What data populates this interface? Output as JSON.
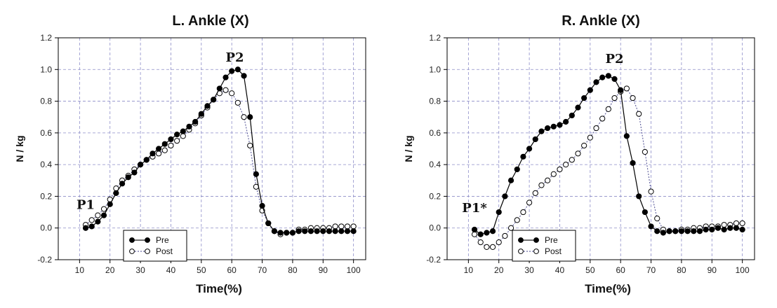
{
  "chart_data": [
    {
      "type": "line",
      "title": "L. Ankle (X)",
      "xlabel": "Time(%)",
      "ylabel": "N / kg",
      "xlim": [
        3,
        104
      ],
      "ylim": [
        -0.2,
        1.2
      ],
      "xticks": [
        10,
        20,
        30,
        40,
        50,
        60,
        70,
        80,
        90,
        100
      ],
      "yticks": [
        "-0.2",
        "0.0",
        "0.2",
        "0.4",
        "0.6",
        "0.8",
        "1.0",
        "1.2"
      ],
      "grid": true,
      "legend_position": "bottom-left",
      "annotations": [
        {
          "text": "P1",
          "x": 12,
          "y": 0.12
        },
        {
          "text": "P2",
          "x": 61,
          "y": 1.05
        }
      ],
      "series": [
        {
          "name": "Pre",
          "marker": "filled-circle",
          "line": "solid",
          "x": [
            12,
            14,
            16,
            18,
            20,
            22,
            24,
            26,
            28,
            30,
            32,
            34,
            36,
            38,
            40,
            42,
            44,
            46,
            48,
            50,
            52,
            54,
            56,
            58,
            60,
            62,
            64,
            66,
            68,
            70,
            72,
            74,
            76,
            78,
            80,
            82,
            84,
            86,
            88,
            90,
            92,
            94,
            96,
            98,
            100
          ],
          "y": [
            0.0,
            0.01,
            0.04,
            0.08,
            0.15,
            0.22,
            0.28,
            0.32,
            0.35,
            0.4,
            0.43,
            0.47,
            0.5,
            0.53,
            0.56,
            0.59,
            0.61,
            0.64,
            0.67,
            0.72,
            0.77,
            0.81,
            0.88,
            0.95,
            0.99,
            1.0,
            0.96,
            0.7,
            0.34,
            0.14,
            0.03,
            -0.02,
            -0.03,
            -0.03,
            -0.03,
            -0.02,
            -0.02,
            -0.02,
            -0.02,
            -0.02,
            -0.02,
            -0.02,
            -0.02,
            -0.02,
            -0.02
          ]
        },
        {
          "name": "Post",
          "marker": "open-circle",
          "line": "dotted",
          "x": [
            12,
            14,
            16,
            18,
            20,
            22,
            24,
            26,
            28,
            30,
            32,
            34,
            36,
            38,
            40,
            42,
            44,
            46,
            48,
            50,
            52,
            54,
            56,
            58,
            60,
            62,
            64,
            66,
            68,
            70,
            72,
            74,
            76,
            78,
            80,
            82,
            84,
            86,
            88,
            90,
            92,
            94,
            96,
            98,
            100
          ],
          "y": [
            0.02,
            0.05,
            0.08,
            0.12,
            0.18,
            0.25,
            0.3,
            0.33,
            0.37,
            0.4,
            0.43,
            0.45,
            0.47,
            0.49,
            0.52,
            0.55,
            0.58,
            0.62,
            0.66,
            0.71,
            0.76,
            0.81,
            0.85,
            0.87,
            0.85,
            0.79,
            0.7,
            0.52,
            0.26,
            0.11,
            0.03,
            -0.02,
            -0.04,
            -0.03,
            -0.03,
            -0.01,
            -0.01,
            0.0,
            0.0,
            0.0,
            0.0,
            0.01,
            0.01,
            0.01,
            0.01
          ]
        }
      ]
    },
    {
      "type": "line",
      "title": "R. Ankle (X)",
      "xlabel": "Time(%)",
      "ylabel": "N / kg",
      "xlim": [
        3,
        104
      ],
      "ylim": [
        -0.2,
        1.2
      ],
      "xticks": [
        10,
        20,
        30,
        40,
        50,
        60,
        70,
        80,
        90,
        100
      ],
      "yticks": [
        "-0.2",
        "0.0",
        "0.2",
        "0.4",
        "0.6",
        "0.8",
        "1.0",
        "1.2"
      ],
      "grid": true,
      "legend_position": "bottom-left",
      "annotations": [
        {
          "text": "P1*",
          "x": 12,
          "y": 0.1
        },
        {
          "text": "P2",
          "x": 58,
          "y": 1.04
        }
      ],
      "series": [
        {
          "name": "Pre",
          "marker": "filled-circle",
          "line": "solid",
          "x": [
            12,
            14,
            16,
            18,
            20,
            22,
            24,
            26,
            28,
            30,
            32,
            34,
            36,
            38,
            40,
            42,
            44,
            46,
            48,
            50,
            52,
            54,
            56,
            58,
            60,
            62,
            64,
            66,
            68,
            70,
            72,
            74,
            76,
            78,
            80,
            82,
            84,
            86,
            88,
            90,
            92,
            94,
            96,
            98,
            100
          ],
          "y": [
            -0.01,
            -0.04,
            -0.03,
            -0.02,
            0.1,
            0.2,
            0.3,
            0.37,
            0.45,
            0.5,
            0.56,
            0.61,
            0.63,
            0.64,
            0.65,
            0.67,
            0.71,
            0.76,
            0.82,
            0.87,
            0.92,
            0.95,
            0.96,
            0.94,
            0.87,
            0.58,
            0.41,
            0.2,
            0.1,
            0.01,
            -0.02,
            -0.03,
            -0.02,
            -0.02,
            -0.02,
            -0.02,
            -0.02,
            -0.02,
            -0.01,
            -0.01,
            0.0,
            -0.01,
            0.0,
            0.0,
            -0.01
          ]
        },
        {
          "name": "Post",
          "marker": "open-circle",
          "line": "dotted",
          "x": [
            12,
            14,
            16,
            18,
            20,
            22,
            24,
            26,
            28,
            30,
            32,
            34,
            36,
            38,
            40,
            42,
            44,
            46,
            48,
            50,
            52,
            54,
            56,
            58,
            60,
            62,
            64,
            66,
            68,
            70,
            72,
            74,
            76,
            78,
            80,
            82,
            84,
            86,
            88,
            90,
            92,
            94,
            96,
            98,
            100
          ],
          "y": [
            -0.04,
            -0.09,
            -0.12,
            -0.12,
            -0.09,
            -0.05,
            0.0,
            0.05,
            0.1,
            0.16,
            0.22,
            0.27,
            0.3,
            0.34,
            0.37,
            0.4,
            0.43,
            0.47,
            0.52,
            0.57,
            0.63,
            0.69,
            0.75,
            0.82,
            0.86,
            0.88,
            0.82,
            0.72,
            0.48,
            0.23,
            0.06,
            -0.01,
            -0.02,
            -0.02,
            -0.01,
            -0.01,
            0.0,
            0.0,
            0.01,
            0.01,
            0.01,
            0.02,
            0.02,
            0.03,
            0.03
          ]
        }
      ]
    }
  ]
}
